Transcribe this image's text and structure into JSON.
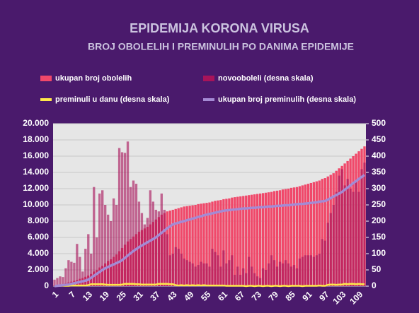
{
  "chart_data": {
    "type": "bar",
    "title": "EPIDEMIJA KORONA VIRUSA",
    "subtitle": "BROJ OBOLELIH I PREMINULIH PO DANIMA EPIDEMIJE",
    "legend": "top",
    "categories": [
      1,
      null,
      null,
      null,
      null,
      null,
      7,
      null,
      null,
      null,
      null,
      null,
      13,
      null,
      null,
      null,
      null,
      null,
      19,
      null,
      null,
      null,
      null,
      null,
      25,
      null,
      null,
      null,
      null,
      null,
      31,
      null,
      null,
      null,
      null,
      null,
      37,
      null,
      null,
      null,
      null,
      null,
      43,
      null,
      null,
      null,
      null,
      null,
      49,
      null,
      null,
      null,
      null,
      null,
      55,
      null,
      null,
      null,
      null,
      null,
      61,
      null,
      null,
      null,
      null,
      null,
      67,
      null,
      null,
      null,
      null,
      null,
      73,
      null,
      null,
      null,
      null,
      null,
      79,
      null,
      null,
      null,
      null,
      null,
      85,
      null,
      null,
      null,
      null,
      null,
      91,
      null,
      null,
      null,
      null,
      null,
      97,
      null,
      null,
      null,
      null,
      null,
      103,
      null,
      null,
      null,
      null,
      null,
      109,
      null,
      null
    ],
    "ylim": [
      0,
      20000
    ],
    "yticks": [
      0,
      {
        "value": 2000,
        "label": "2.000"
      },
      {
        "value": 4000,
        "label": "4.000"
      },
      {
        "value": 6000,
        "label": "6.000"
      },
      {
        "value": 8000,
        "label": "8.000"
      },
      {
        "value": 10000,
        "label": "10.000"
      },
      {
        "value": 12000,
        "label": "12.000"
      },
      {
        "value": 14000,
        "label": "14.000"
      },
      {
        "value": 16000,
        "label": "16.000"
      },
      {
        "value": 18000,
        "label": "18.000"
      },
      {
        "value": 20000,
        "label": "20.000"
      }
    ],
    "y2lim": [
      0,
      500
    ],
    "y2ticks": [
      0,
      50,
      100,
      150,
      200,
      250,
      300,
      350,
      400,
      450,
      500
    ],
    "series": [
      {
        "name": "ukupan broj obolelih",
        "type": "bar",
        "color": "#f0486a",
        "values": [
          100,
          150,
          200,
          250,
          350,
          450,
          550,
          650,
          750,
          900,
          1000,
          1150,
          1300,
          1500,
          1800,
          2000,
          2300,
          2500,
          2800,
          3100,
          3300,
          3600,
          3900,
          4300,
          4700,
          5100,
          5500,
          5800,
          6100,
          6400,
          6700,
          6900,
          7100,
          7300,
          7600,
          7900,
          8200,
          8500,
          8800,
          9000,
          9200,
          9300,
          9400,
          9500,
          9600,
          9700,
          9800,
          9850,
          9900,
          9950,
          10000,
          10100,
          10150,
          10200,
          10250,
          10300,
          10400,
          10500,
          10550,
          10600,
          10700,
          10750,
          10800,
          10900,
          10950,
          11000,
          11050,
          11100,
          11150,
          11200,
          11250,
          11300,
          11350,
          11400,
          11450,
          11500,
          11550,
          11600,
          11700,
          11750,
          11800,
          11900,
          11950,
          12000,
          12100,
          12150,
          12200,
          12300,
          12400,
          12500,
          12600,
          12700,
          12800,
          12900,
          13000,
          13200,
          13300,
          13500,
          13700,
          13900,
          14200,
          14500,
          14800,
          15100,
          15400,
          15700,
          16000,
          16300,
          16600,
          16900,
          17200
        ]
      },
      {
        "name": "novooboleli (desna skala)",
        "type": "bar",
        "axis": "y2",
        "color": "#a8145a",
        "values": [
          20,
          25,
          30,
          28,
          55,
          80,
          75,
          72,
          130,
          90,
          45,
          115,
          160,
          100,
          305,
          150,
          285,
          295,
          250,
          220,
          200,
          270,
          250,
          425,
          412,
          410,
          445,
          305,
          325,
          315,
          260,
          225,
          190,
          210,
          295,
          260,
          235,
          230,
          285,
          235,
          160,
          95,
          100,
          120,
          115,
          100,
          85,
          80,
          75,
          70,
          60,
          65,
          75,
          70,
          70,
          60,
          115,
          105,
          95,
          60,
          110,
          70,
          80,
          95,
          35,
          60,
          35,
          55,
          40,
          90,
          60,
          40,
          30,
          25,
          55,
          50,
          70,
          95,
          80,
          60,
          75,
          70,
          80,
          70,
          60,
          65,
          55,
          85,
          90,
          95,
          95,
          95,
          90,
          95,
          100,
          145,
          140,
          195,
          225,
          250,
          290,
          340,
          360,
          310,
          330,
          300,
          290,
          320,
          290,
          360,
          380
        ]
      },
      {
        "name": "preminuli u danu (desna skala)",
        "type": "line",
        "axis": "y2",
        "color": "#ffe84a",
        "values": [
          0,
          1,
          1,
          1,
          1,
          1,
          2,
          2,
          2,
          2,
          2,
          2,
          3,
          6,
          6,
          6,
          6,
          6,
          5,
          4,
          4,
          4,
          4,
          4,
          5,
          7,
          7,
          7,
          7,
          6,
          6,
          5,
          5,
          5,
          5,
          5,
          5,
          7,
          7,
          7,
          7,
          6,
          6,
          3,
          2,
          3,
          2,
          3,
          2,
          3,
          2,
          3,
          2,
          3,
          2,
          2,
          2,
          2,
          2,
          2,
          2,
          1,
          1,
          1,
          1,
          1,
          1,
          1,
          0,
          1,
          1,
          0,
          1,
          1,
          0,
          1,
          1,
          0,
          1,
          1,
          0,
          1,
          1,
          0,
          1,
          1,
          1,
          1,
          0,
          1,
          1,
          1,
          1,
          1,
          2,
          1,
          1,
          4,
          5,
          5,
          4,
          5,
          5,
          7,
          6,
          7,
          7,
          6,
          7,
          6,
          6
        ]
      },
      {
        "name": "ukupan broj preminulih (desna skala)",
        "type": "line",
        "axis": "y2",
        "color": "#a48ad4",
        "values": [
          0,
          1,
          2,
          3,
          4,
          5,
          7,
          9,
          11,
          13,
          15,
          17,
          20,
          26,
          32,
          38,
          44,
          50,
          55,
          59,
          63,
          67,
          71,
          75,
          80,
          87,
          94,
          101,
          108,
          114,
          120,
          125,
          130,
          135,
          140,
          145,
          150,
          157,
          164,
          171,
          178,
          184,
          190,
          193,
          195,
          198,
          200,
          203,
          205,
          208,
          210,
          213,
          215,
          218,
          220,
          222,
          224,
          226,
          228,
          230,
          232,
          233,
          234,
          235,
          236,
          237,
          238,
          239,
          239,
          240,
          241,
          241,
          242,
          243,
          243,
          244,
          245,
          245,
          246,
          247,
          247,
          248,
          249,
          249,
          250,
          251,
          252,
          253,
          253,
          254,
          255,
          256,
          257,
          258,
          260,
          261,
          262,
          266,
          271,
          276,
          280,
          285,
          290,
          297,
          303,
          310,
          317,
          323,
          330,
          336,
          342
        ]
      }
    ]
  }
}
